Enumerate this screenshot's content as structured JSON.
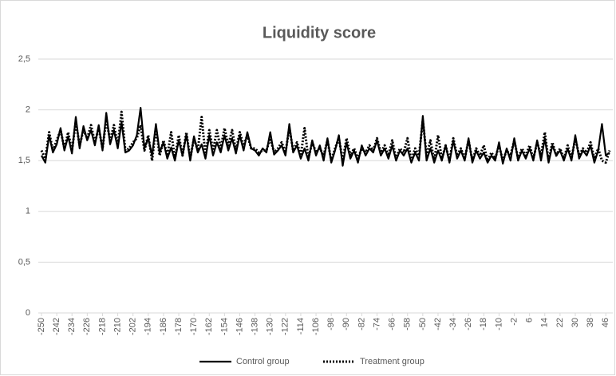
{
  "chart_data": {
    "type": "line",
    "title": "Liquidity score",
    "x": [
      -250,
      -248,
      -246,
      -244,
      -242,
      -240,
      -238,
      -236,
      -234,
      -232,
      -230,
      -228,
      -226,
      -224,
      -222,
      -220,
      -218,
      -216,
      -214,
      -212,
      -210,
      -208,
      -206,
      -204,
      -202,
      -200,
      -198,
      -196,
      -194,
      -192,
      -190,
      -188,
      -186,
      -184,
      -182,
      -180,
      -178,
      -176,
      -174,
      -172,
      -170,
      -168,
      -166,
      -164,
      -162,
      -160,
      -158,
      -156,
      -154,
      -152,
      -150,
      -148,
      -146,
      -144,
      -142,
      -140,
      -138,
      -136,
      -134,
      -132,
      -130,
      -128,
      -126,
      -124,
      -122,
      -120,
      -118,
      -116,
      -114,
      -112,
      -110,
      -108,
      -106,
      -104,
      -102,
      -100,
      -98,
      -96,
      -94,
      -92,
      -90,
      -88,
      -86,
      -84,
      -82,
      -80,
      -78,
      -76,
      -74,
      -72,
      -70,
      -68,
      -66,
      -64,
      -62,
      -60,
      -58,
      -56,
      -54,
      -52,
      -50,
      -48,
      -46,
      -44,
      -42,
      -40,
      -38,
      -36,
      -34,
      -32,
      -30,
      -28,
      -26,
      -24,
      -22,
      -20,
      -18,
      -16,
      -14,
      -12,
      -10,
      -8,
      -6,
      -4,
      -2,
      0,
      2,
      4,
      6,
      8,
      10,
      12,
      14,
      16,
      18,
      20,
      22,
      24,
      26,
      28,
      30,
      32,
      34,
      36,
      38,
      40,
      42,
      44,
      46,
      48
    ],
    "series": [
      {
        "name": "Control group",
        "color": "#000000",
        "dash": "none",
        "values": [
          1.55,
          1.48,
          1.75,
          1.58,
          1.66,
          1.82,
          1.6,
          1.74,
          1.57,
          1.93,
          1.62,
          1.84,
          1.7,
          1.8,
          1.65,
          1.85,
          1.6,
          1.97,
          1.66,
          1.8,
          1.62,
          1.88,
          1.58,
          1.6,
          1.65,
          1.75,
          2.02,
          1.62,
          1.72,
          1.55,
          1.86,
          1.58,
          1.68,
          1.52,
          1.63,
          1.5,
          1.7,
          1.55,
          1.76,
          1.5,
          1.74,
          1.58,
          1.66,
          1.52,
          1.75,
          1.55,
          1.68,
          1.58,
          1.75,
          1.6,
          1.72,
          1.57,
          1.75,
          1.6,
          1.78,
          1.62,
          1.6,
          1.55,
          1.62,
          1.58,
          1.78,
          1.56,
          1.6,
          1.65,
          1.55,
          1.86,
          1.58,
          1.65,
          1.52,
          1.62,
          1.5,
          1.7,
          1.55,
          1.65,
          1.5,
          1.72,
          1.48,
          1.6,
          1.75,
          1.45,
          1.68,
          1.52,
          1.6,
          1.48,
          1.65,
          1.55,
          1.62,
          1.58,
          1.7,
          1.55,
          1.62,
          1.52,
          1.65,
          1.5,
          1.6,
          1.55,
          1.62,
          1.48,
          1.58,
          1.5,
          1.94,
          1.5,
          1.62,
          1.48,
          1.6,
          1.5,
          1.65,
          1.48,
          1.7,
          1.52,
          1.6,
          1.5,
          1.72,
          1.48,
          1.6,
          1.52,
          1.58,
          1.48,
          1.55,
          1.5,
          1.68,
          1.47,
          1.62,
          1.5,
          1.72,
          1.5,
          1.6,
          1.52,
          1.62,
          1.5,
          1.7,
          1.5,
          1.72,
          1.48,
          1.65,
          1.55,
          1.6,
          1.5,
          1.62,
          1.5,
          1.75,
          1.52,
          1.6,
          1.55,
          1.65,
          1.48,
          1.6,
          1.86,
          1.55,
          1.58
        ]
      },
      {
        "name": "Treatment group",
        "color": "#000000",
        "dash": "dotted",
        "values": [
          1.6,
          1.52,
          1.78,
          1.6,
          1.7,
          1.8,
          1.62,
          1.78,
          1.6,
          1.88,
          1.65,
          1.8,
          1.72,
          1.85,
          1.68,
          1.82,
          1.62,
          1.9,
          1.7,
          1.85,
          1.65,
          1.98,
          1.6,
          1.62,
          1.68,
          1.72,
          1.85,
          1.6,
          1.75,
          1.5,
          1.82,
          1.55,
          1.7,
          1.55,
          1.78,
          1.52,
          1.75,
          1.55,
          1.78,
          1.52,
          1.72,
          1.6,
          1.93,
          1.55,
          1.8,
          1.6,
          1.8,
          1.62,
          1.82,
          1.65,
          1.8,
          1.6,
          1.78,
          1.65,
          1.75,
          1.62,
          1.62,
          1.58,
          1.6,
          1.6,
          1.72,
          1.58,
          1.62,
          1.68,
          1.58,
          1.82,
          1.6,
          1.68,
          1.55,
          1.82,
          1.52,
          1.68,
          1.58,
          1.62,
          1.55,
          1.7,
          1.5,
          1.62,
          1.72,
          1.5,
          1.72,
          1.55,
          1.62,
          1.52,
          1.62,
          1.58,
          1.65,
          1.6,
          1.72,
          1.58,
          1.65,
          1.55,
          1.7,
          1.52,
          1.62,
          1.58,
          1.72,
          1.5,
          1.62,
          1.55,
          1.9,
          1.55,
          1.7,
          1.5,
          1.75,
          1.52,
          1.65,
          1.5,
          1.72,
          1.55,
          1.62,
          1.52,
          1.7,
          1.5,
          1.62,
          1.55,
          1.65,
          1.5,
          1.58,
          1.52,
          1.65,
          1.5,
          1.6,
          1.55,
          1.7,
          1.52,
          1.62,
          1.55,
          1.65,
          1.52,
          1.68,
          1.55,
          1.78,
          1.5,
          1.68,
          1.55,
          1.62,
          1.52,
          1.65,
          1.52,
          1.72,
          1.55,
          1.62,
          1.58,
          1.68,
          1.52,
          1.62,
          1.5,
          1.48,
          1.6
        ]
      }
    ],
    "xlim": [
      -250,
      48
    ],
    "xticks": [
      -250,
      -242,
      -234,
      -226,
      -218,
      -210,
      -202,
      -194,
      -186,
      -178,
      -170,
      -162,
      -154,
      -146,
      -138,
      -130,
      -122,
      -114,
      -106,
      -98,
      -90,
      -82,
      -74,
      -66,
      -58,
      -50,
      -42,
      -34,
      -26,
      -18,
      -10,
      -2,
      6,
      14,
      22,
      30,
      38,
      46
    ],
    "ylim": [
      0,
      2.5
    ],
    "yticks": [
      0,
      {
        "value": 0.5,
        "label": "0,5"
      },
      1,
      {
        "value": 1.5,
        "label": "1,5"
      },
      2,
      {
        "value": 2.5,
        "label": "2,5"
      }
    ],
    "grid": true,
    "legend": "bottom"
  }
}
